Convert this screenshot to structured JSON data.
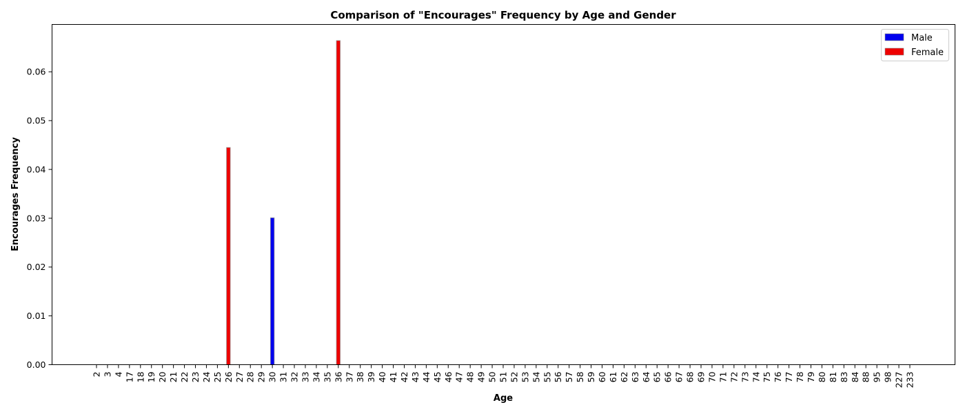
{
  "chart_data": {
    "type": "bar",
    "title": "Comparison of \"Encourages\" Frequency by Age and Gender",
    "xlabel": "Age",
    "ylabel": "Encourages Frequency",
    "ylim": [
      0,
      0.0697
    ],
    "yticks": [
      "0.00",
      "0.01",
      "0.02",
      "0.03",
      "0.04",
      "0.05",
      "0.06"
    ],
    "ytick_values": [
      0,
      0.01,
      0.02,
      0.03,
      0.04,
      0.05,
      0.06
    ],
    "legend_position": "top-right",
    "grid": false,
    "categories": [
      "2",
      "3",
      "4",
      "17",
      "18",
      "19",
      "20",
      "21",
      "22",
      "23",
      "24",
      "25",
      "26",
      "27",
      "28",
      "29",
      "30",
      "31",
      "32",
      "33",
      "34",
      "35",
      "36",
      "37",
      "38",
      "39",
      "40",
      "41",
      "42",
      "43",
      "44",
      "45",
      "46",
      "47",
      "48",
      "49",
      "50",
      "51",
      "52",
      "53",
      "54",
      "55",
      "56",
      "57",
      "58",
      "59",
      "60",
      "61",
      "62",
      "63",
      "64",
      "65",
      "66",
      "67",
      "68",
      "69",
      "70",
      "71",
      "72",
      "73",
      "74",
      "75",
      "76",
      "77",
      "78",
      "79",
      "80",
      "81",
      "83",
      "84",
      "88",
      "95",
      "98",
      "227",
      "233"
    ],
    "series": [
      {
        "name": "Male",
        "color": "#0000ee",
        "values": [
          0,
          0,
          0,
          0,
          0,
          0,
          0,
          0,
          0,
          0,
          0,
          0,
          0,
          0,
          0,
          0,
          0.0301,
          0,
          0,
          0,
          0,
          0,
          0,
          0,
          0,
          0,
          0,
          0,
          0,
          0,
          0,
          0,
          0,
          0,
          0,
          0,
          0,
          0,
          0,
          0,
          0,
          0,
          0,
          0,
          0,
          0,
          0,
          0,
          0,
          0,
          0,
          0,
          0,
          0,
          0,
          0,
          0,
          0,
          0,
          0,
          0,
          0,
          0,
          0,
          0,
          0,
          0,
          0,
          0,
          0,
          0,
          0,
          0,
          0,
          0
        ]
      },
      {
        "name": "Female",
        "color": "#ee0000",
        "values": [
          0,
          0,
          0,
          0,
          0,
          0,
          0,
          0,
          0,
          0,
          0,
          0,
          0.0445,
          0,
          0,
          0,
          0,
          0,
          0,
          0,
          0,
          0,
          0.0664,
          0,
          0,
          0,
          0,
          0,
          0,
          0,
          0,
          0,
          0,
          0,
          0,
          0,
          0,
          0,
          0,
          0,
          0,
          0,
          0,
          0,
          0,
          0,
          0,
          0,
          0,
          0,
          0,
          0,
          0,
          0,
          0,
          0,
          0,
          0,
          0,
          0,
          0,
          0,
          0,
          0,
          0,
          0,
          0,
          0,
          0,
          0,
          0,
          0,
          0,
          0,
          0
        ]
      }
    ]
  }
}
